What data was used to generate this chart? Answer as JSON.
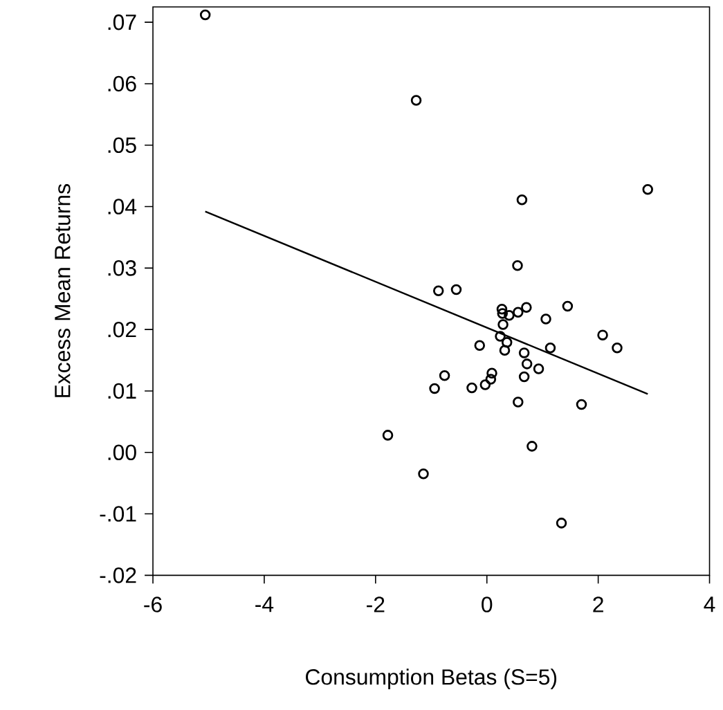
{
  "chart_data": {
    "type": "scatter",
    "xlabel": "Consumption Betas (S=5)",
    "ylabel": "Excess Mean Returns",
    "xlim": [
      -6,
      4
    ],
    "ylim": [
      -0.02,
      0.0725
    ],
    "xticks": [
      -6,
      -4,
      -2,
      0,
      2,
      4
    ],
    "yticks": [
      {
        "value": -0.02,
        "label": "-.02"
      },
      {
        "value": -0.01,
        "label": "-.01"
      },
      {
        "value": 0,
        "label": ".00"
      },
      {
        "value": 0.01,
        "label": ".01"
      },
      {
        "value": 0.02,
        "label": ".02"
      },
      {
        "value": 0.03,
        "label": ".03"
      },
      {
        "value": 0.04,
        "label": ".04"
      },
      {
        "value": 0.05,
        "label": ".05"
      },
      {
        "value": 0.06,
        "label": ".06"
      },
      {
        "value": 0.07,
        "label": ".07"
      }
    ],
    "series": [
      {
        "color": "#000000",
        "marker": "circle",
        "x": [
          -5.06,
          -1.27,
          2.89,
          0.63,
          0.55,
          -0.87,
          -0.55,
          0.27,
          0.28,
          0.4,
          0.56,
          0.71,
          1.45,
          1.06,
          0.29,
          0.24,
          0.36,
          0.32,
          -0.13,
          2.08,
          2.34,
          1.14,
          0.67,
          0.72,
          0.93,
          0.67,
          0.09,
          0.07,
          -0.03,
          -0.27,
          -0.76,
          -0.94,
          0.56,
          1.7,
          -1.78,
          0.81,
          -1.14,
          1.34
        ],
        "values": [
          0.0712,
          0.0573,
          0.0428,
          0.0411,
          0.0304,
          0.0263,
          0.0265,
          0.0233,
          0.0226,
          0.0223,
          0.0228,
          0.0236,
          0.0238,
          0.0217,
          0.0208,
          0.0189,
          0.0179,
          0.0166,
          0.0174,
          0.0191,
          0.017,
          0.017,
          0.0162,
          0.0144,
          0.0136,
          0.0123,
          0.0129,
          0.0119,
          0.011,
          0.0105,
          0.0125,
          0.0104,
          0.0082,
          0.0078,
          0.0028,
          0.001,
          -0.0035,
          -0.0115
        ]
      },
      {
        "type": "line",
        "color": "#000000",
        "marker": "none",
        "line_style": "solid",
        "x": [
          -5.06,
          2.89
        ],
        "values": [
          0.0392,
          0.0095
        ]
      }
    ]
  }
}
